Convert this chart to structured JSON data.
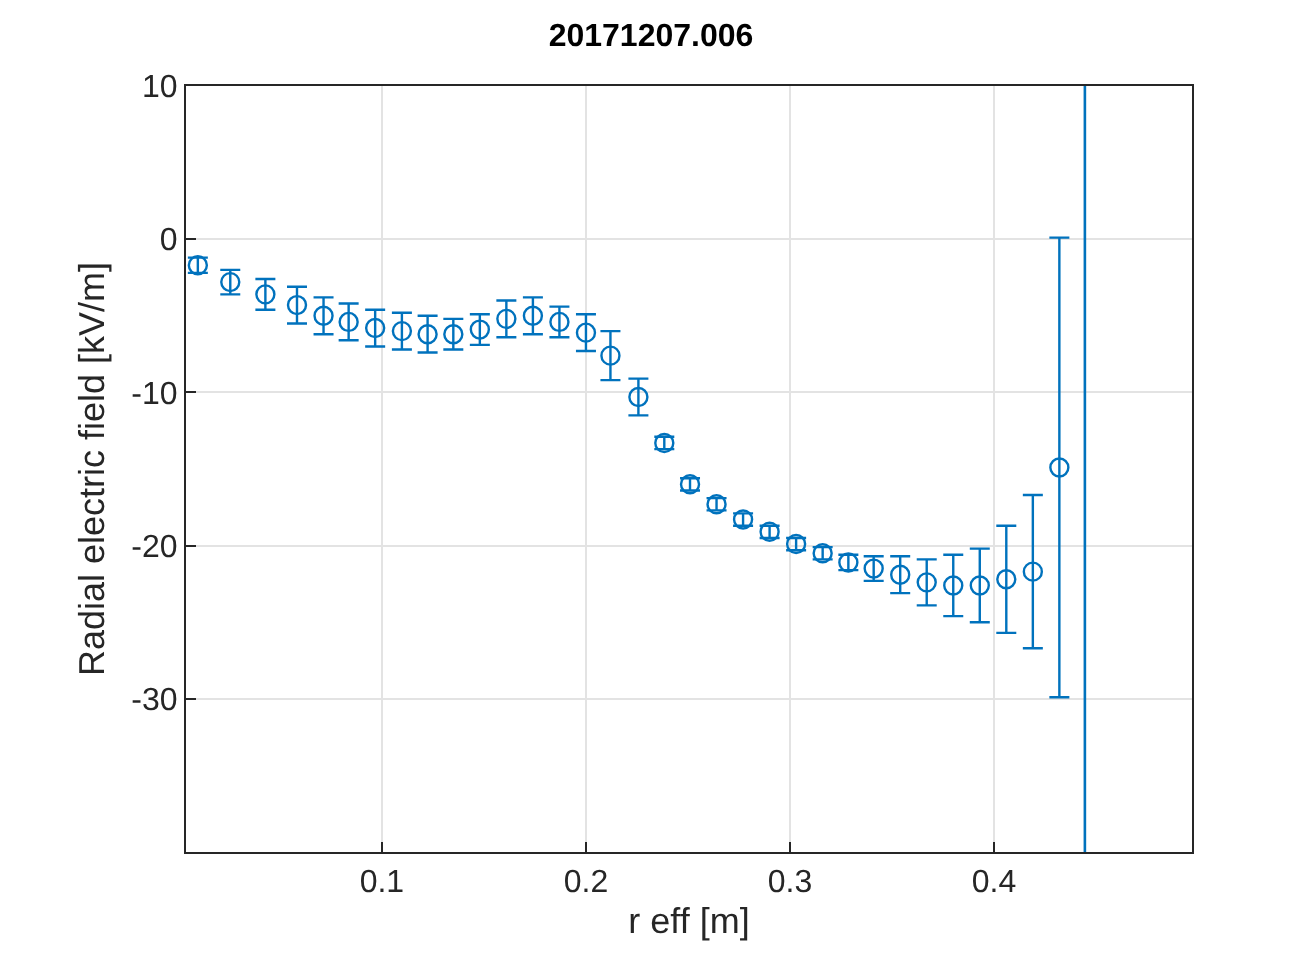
{
  "chart_data": {
    "type": "scatter",
    "title": "20171207.006",
    "xlabel": "r eff [m]",
    "ylabel": "Radial electric field [kV/m]",
    "xlim": [
      0.004,
      0.497
    ],
    "xticks": [
      0.1,
      0.2,
      0.3,
      0.4
    ],
    "ylim": [
      -40,
      10
    ],
    "yticks": [
      -30,
      -20,
      -10,
      0,
      10
    ],
    "grid": true,
    "marker": "circle",
    "x": [
      0.0098,
      0.0257,
      0.0429,
      0.0584,
      0.0714,
      0.0837,
      0.0967,
      0.1098,
      0.1224,
      0.135,
      0.148,
      0.161,
      0.174,
      0.187,
      0.2,
      0.212,
      0.2257,
      0.2384,
      0.251,
      0.264,
      0.277,
      0.29,
      0.303,
      0.316,
      0.3286,
      0.341,
      0.354,
      0.367,
      0.38,
      0.393,
      0.406,
      0.419,
      0.432
    ],
    "series": [
      {
        "color": "#0072bd",
        "values": [
          -1.7,
          -2.8,
          -3.6,
          -4.3,
          -5.0,
          -5.4,
          -5.8,
          -6.0,
          -6.2,
          -6.2,
          -5.9,
          -5.2,
          -5.0,
          -5.4,
          -6.1,
          -7.6,
          -10.3,
          -13.3,
          -16.0,
          -17.3,
          -18.3,
          -19.1,
          -19.9,
          -20.5,
          -21.1,
          -21.5,
          -21.9,
          -22.4,
          -22.6,
          -22.6,
          -22.2,
          -21.7,
          -14.9
        ],
        "errors": [
          0.5,
          0.8,
          1.0,
          1.2,
          1.2,
          1.2,
          1.2,
          1.2,
          1.2,
          1.0,
          1.0,
          1.2,
          1.2,
          1.0,
          1.2,
          1.6,
          1.2,
          0.4,
          0.4,
          0.4,
          0.4,
          0.4,
          0.4,
          0.4,
          0.5,
          0.8,
          1.2,
          1.5,
          2.0,
          2.4,
          3.5,
          5.0,
          15.0
        ]
      }
    ],
    "ref_lines": [
      {
        "axis": "x",
        "value": 0.4445,
        "color": "#0072bd",
        "line_style": "solid"
      }
    ]
  }
}
